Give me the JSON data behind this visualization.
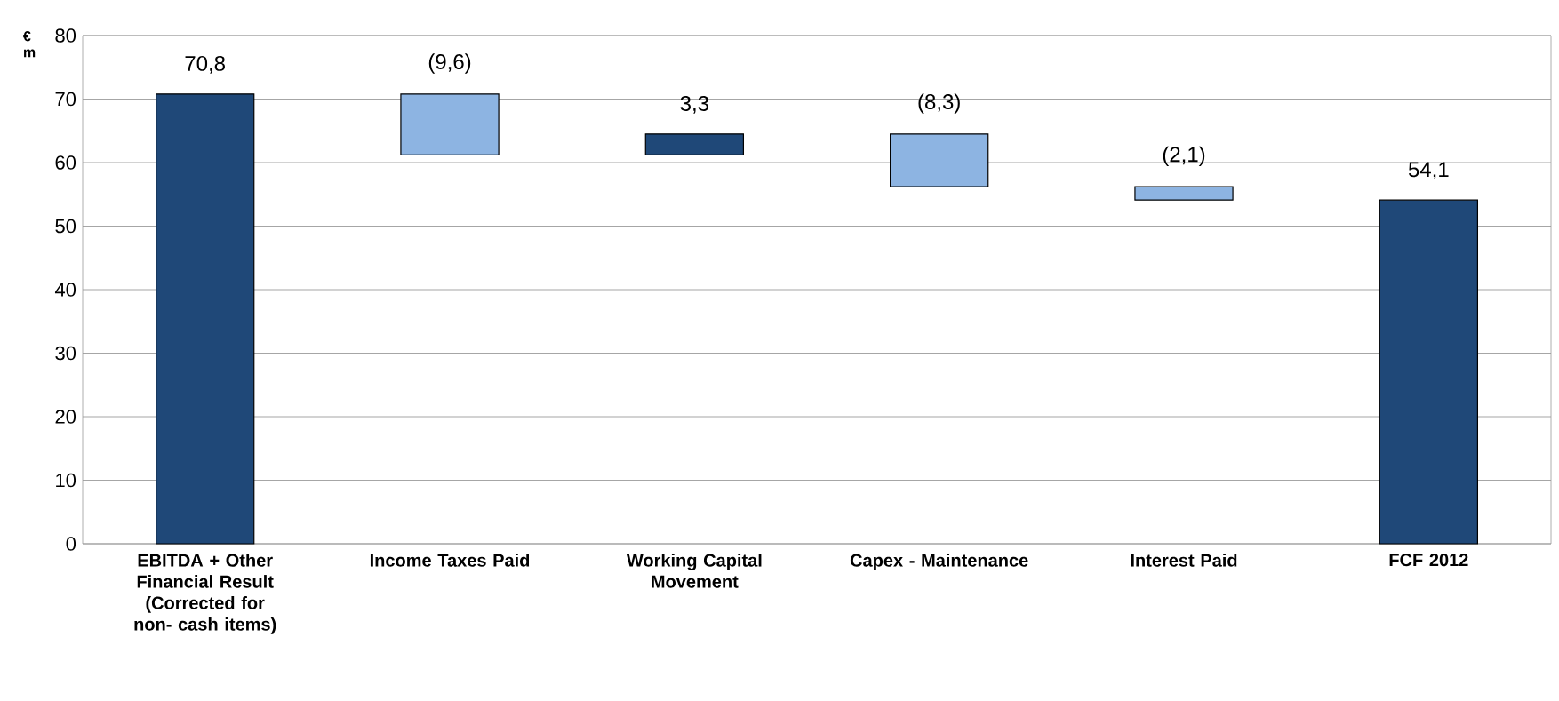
{
  "chart_data": {
    "type": "bar",
    "ylabel": "€ m",
    "categories": [
      "EBITDA + Other Financial Result (Corrected for non- cash items)",
      "Income Taxes Paid",
      "Working Capital Movement",
      "Capex - Maintenance",
      "Interest Paid",
      "FCF 2012"
    ],
    "values": [
      70.8,
      -9.6,
      3.3,
      -8.3,
      -2.1,
      54.1
    ],
    "base": [
      0,
      70.8,
      61.2,
      64.5,
      56.2,
      0
    ],
    "value_labels": [
      "70,8",
      "(9,6)",
      "3,3",
      "(8,3)",
      "(2,1)",
      "54,1"
    ],
    "colors": [
      "#1f4878",
      "#8db4e2",
      "#1f4878",
      "#8db4e2",
      "#8db4e2",
      "#1f4878"
    ],
    "ylim": [
      0,
      80
    ],
    "yticks": [
      0,
      10,
      20,
      30,
      40,
      50,
      60,
      70,
      80
    ],
    "grid": "y"
  }
}
